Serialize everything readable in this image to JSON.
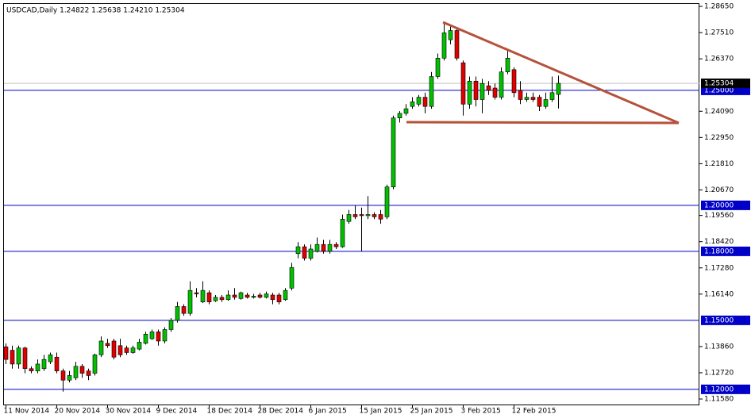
{
  "chart_data": {
    "type": "candlestick",
    "title": "USDCAD,Daily  1.24822 1.25638 1.24210 1.25304",
    "categories": [
      "11 Nov 2014",
      null,
      null,
      null,
      null,
      null,
      null,
      null,
      "20 Nov 2014",
      null,
      null,
      null,
      null,
      null,
      null,
      null,
      "30 Nov 2014",
      null,
      null,
      null,
      null,
      null,
      null,
      null,
      "9 Dec 2014",
      null,
      null,
      null,
      null,
      null,
      null,
      null,
      "18 Dec 2014",
      null,
      null,
      null,
      null,
      null,
      null,
      null,
      "28 Dec 2014",
      null,
      null,
      null,
      null,
      null,
      null,
      null,
      "6 Jan 2015",
      null,
      null,
      null,
      null,
      null,
      null,
      null,
      "15 Jan 2015",
      null,
      null,
      null,
      null,
      null,
      null,
      null,
      "25 Jan 2015",
      null,
      null,
      null,
      null,
      null,
      null,
      null,
      "3 Feb 2015",
      null,
      null,
      null,
      null,
      null,
      null,
      null,
      "12 Feb 2015",
      null,
      null,
      null,
      null,
      null,
      null,
      null
    ],
    "open": [
      1.1385,
      1.137,
      1.131,
      1.138,
      1.129,
      1.128,
      1.129,
      1.132,
      1.134,
      1.128,
      1.124,
      1.125,
      1.13,
      1.128,
      1.127,
      1.135,
      1.14,
      1.141,
      1.139,
      1.138,
      1.136,
      1.1375,
      1.14,
      1.142,
      1.145,
      1.141,
      1.146,
      1.15,
      1.156,
      1.153,
      1.162,
      1.158,
      1.162,
      1.1585,
      1.16,
      1.159,
      1.161,
      1.1595,
      1.161,
      1.16,
      1.161,
      1.16,
      1.161,
      1.161,
      1.159,
      1.164,
      1.179,
      1.182,
      1.177,
      1.18,
      1.183,
      1.18,
      1.183,
      1.182,
      1.193,
      1.196,
      1.196,
      1.1955,
      1.196,
      1.196,
      1.195,
      1.208,
      1.238,
      1.24,
      1.243,
      1.244,
      1.247,
      1.243,
      1.256,
      1.264,
      1.272,
      1.276,
      1.262,
      1.244,
      1.254,
      1.246,
      1.252,
      1.251,
      1.247,
      1.258,
      1.259,
      1.25,
      1.246,
      1.247,
      1.247,
      1.243,
      1.246,
      1.24822
    ],
    "high": [
      1.14,
      1.139,
      1.139,
      1.1385,
      1.13,
      1.133,
      1.135,
      1.136,
      1.136,
      1.129,
      1.128,
      1.132,
      1.131,
      1.129,
      1.1355,
      1.143,
      1.142,
      1.142,
      1.142,
      1.139,
      1.139,
      1.142,
      1.145,
      1.146,
      1.146,
      1.147,
      1.151,
      1.158,
      1.157,
      1.167,
      1.164,
      1.167,
      1.163,
      1.161,
      1.161,
      1.163,
      1.164,
      1.1625,
      1.162,
      1.1615,
      1.162,
      1.1625,
      1.162,
      1.162,
      1.164,
      1.175,
      1.184,
      1.183,
      1.183,
      1.186,
      1.185,
      1.185,
      1.184,
      1.196,
      1.198,
      1.2,
      1.199,
      1.204,
      1.197,
      1.198,
      1.209,
      1.239,
      1.241,
      1.244,
      1.247,
      1.248,
      1.249,
      1.258,
      1.266,
      1.279,
      1.278,
      1.277,
      1.263,
      1.256,
      1.256,
      1.255,
      1.254,
      1.253,
      1.26,
      1.268,
      1.26,
      1.254,
      1.249,
      1.249,
      1.248,
      1.249,
      1.256,
      1.25638
    ],
    "low": [
      1.131,
      1.129,
      1.129,
      1.127,
      1.127,
      1.127,
      1.128,
      1.131,
      1.127,
      1.119,
      1.123,
      1.124,
      1.125,
      1.124,
      1.126,
      1.134,
      1.138,
      1.133,
      1.134,
      1.135,
      1.1355,
      1.137,
      1.1395,
      1.1415,
      1.139,
      1.14,
      1.145,
      1.149,
      1.152,
      1.152,
      1.16,
      1.1575,
      1.157,
      1.158,
      1.158,
      1.1585,
      1.159,
      1.159,
      1.1595,
      1.1595,
      1.1595,
      1.1595,
      1.157,
      1.157,
      1.1585,
      1.163,
      1.177,
      1.176,
      1.176,
      1.1795,
      1.179,
      1.179,
      1.181,
      1.1815,
      1.192,
      1.194,
      1.18,
      1.194,
      1.194,
      1.192,
      1.194,
      1.207,
      1.236,
      1.239,
      1.242,
      1.243,
      1.24,
      1.242,
      1.255,
      1.263,
      1.27,
      1.263,
      1.239,
      1.242,
      1.243,
      1.24,
      1.248,
      1.246,
      1.246,
      1.257,
      1.247,
      1.244,
      1.245,
      1.245,
      1.241,
      1.242,
      1.245,
      1.2421
    ],
    "close": [
      1.133,
      1.131,
      1.138,
      1.129,
      1.128,
      1.131,
      1.133,
      1.135,
      1.128,
      1.124,
      1.126,
      1.13,
      1.127,
      1.126,
      1.135,
      1.141,
      1.139,
      1.134,
      1.135,
      1.136,
      1.138,
      1.1405,
      1.144,
      1.145,
      1.141,
      1.146,
      1.15,
      1.156,
      1.153,
      1.163,
      1.1615,
      1.163,
      1.158,
      1.16,
      1.159,
      1.161,
      1.16,
      1.162,
      1.16,
      1.1605,
      1.16,
      1.1615,
      1.159,
      1.158,
      1.163,
      1.173,
      1.182,
      1.177,
      1.181,
      1.183,
      1.18,
      1.183,
      1.182,
      1.194,
      1.196,
      1.195,
      1.1955,
      1.196,
      1.195,
      1.194,
      1.208,
      1.238,
      1.24,
      1.242,
      1.245,
      1.247,
      1.243,
      1.256,
      1.264,
      1.275,
      1.276,
      1.264,
      1.244,
      1.254,
      1.246,
      1.253,
      1.25,
      1.247,
      1.258,
      1.264,
      1.249,
      1.246,
      1.247,
      1.246,
      1.243,
      1.246,
      1.249,
      1.25304
    ],
    "up_color": "#00c000",
    "down_color": "#e00000",
    "ylim": [
      1.1134,
      1.2879
    ],
    "yticks": [
      {
        "value": 1.2865,
        "label": "1.28650"
      },
      {
        "value": 1.2751,
        "label": "1.27510"
      },
      {
        "value": 1.2637,
        "label": "1.26370"
      },
      {
        "value": 1.2409,
        "label": "1.24090"
      },
      {
        "value": 1.2295,
        "label": "1.22950"
      },
      {
        "value": 1.2181,
        "label": "1.21810"
      },
      {
        "value": 1.2067,
        "label": "1.20670"
      },
      {
        "value": 1.1956,
        "label": "1.19560"
      },
      {
        "value": 1.1842,
        "label": "1.18420"
      },
      {
        "value": 1.1728,
        "label": "1.17280"
      },
      {
        "value": 1.1614,
        "label": "1.16140"
      },
      {
        "value": 1.1386,
        "label": "1.13860"
      },
      {
        "value": 1.1272,
        "label": "1.12720"
      },
      {
        "value": 1.1158,
        "label": "1.11580"
      }
    ],
    "levels": [
      {
        "value": 1.25,
        "label": "1.25000"
      },
      {
        "value": 1.2,
        "label": "1.20000"
      },
      {
        "value": 1.18,
        "label": "1.18000"
      },
      {
        "value": 1.15,
        "label": "1.15000"
      },
      {
        "value": 1.12,
        "label": "1.12000"
      }
    ],
    "level_color": "#0000c8"
  }
}
